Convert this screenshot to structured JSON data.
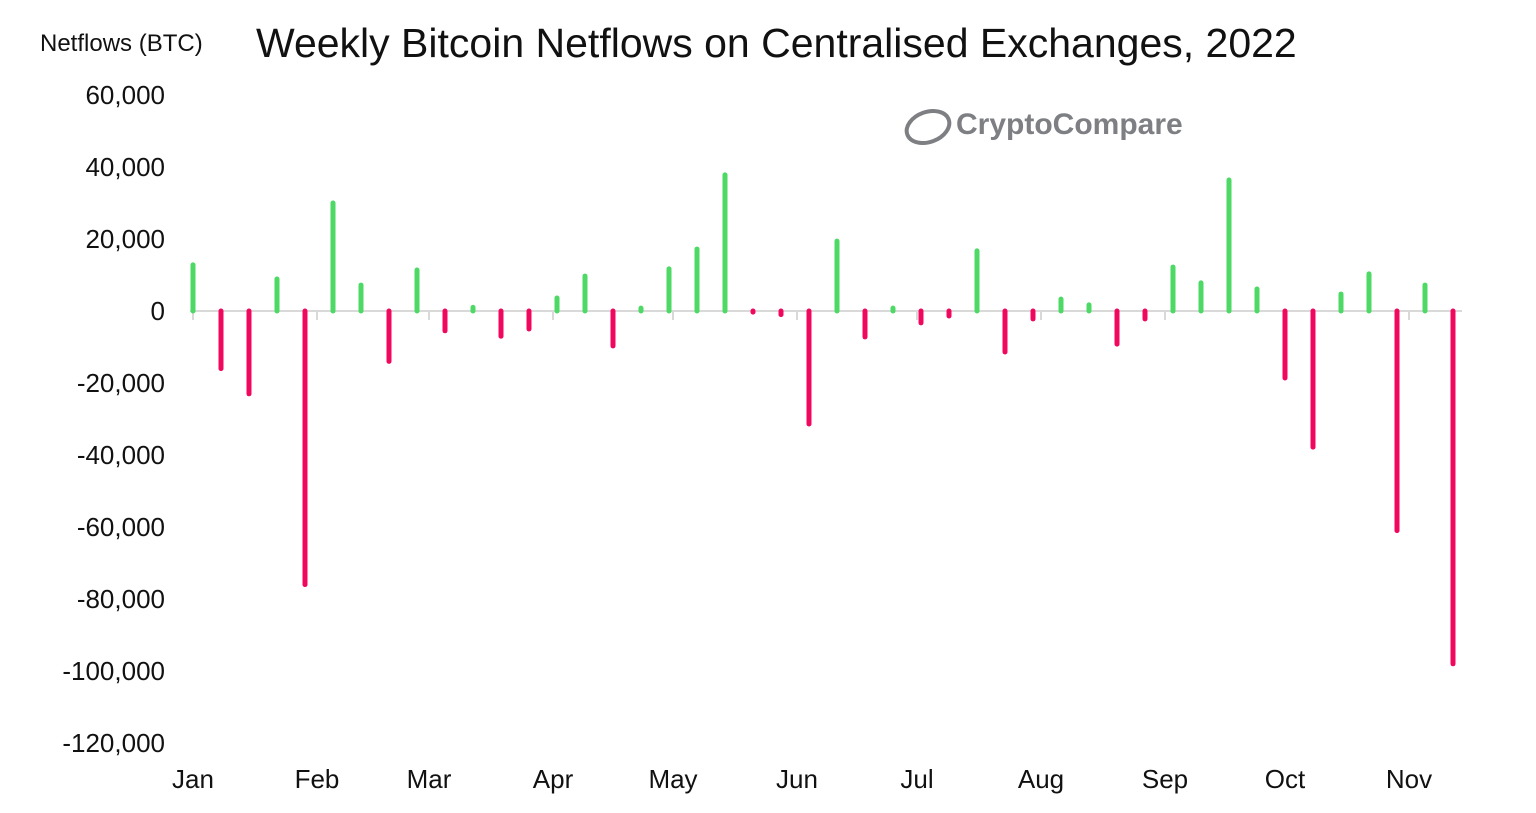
{
  "chart_data": {
    "type": "bar",
    "title": "Weekly Bitcoin Netflows on Centralised Exchanges, 2022",
    "ylabel": "Netflows (BTC)",
    "xlabel": "",
    "watermark": "CryptoCompare",
    "ylim": [
      -120000,
      60000
    ],
    "yticks": [
      60000,
      40000,
      20000,
      0,
      -20000,
      -40000,
      -60000,
      -80000,
      -100000,
      -120000
    ],
    "ytick_labels": [
      "60,000",
      "40,000",
      "20,000",
      "0",
      "-20,000",
      "-40,000",
      "-60,000",
      "-80,000",
      "-100,000",
      "-120,000"
    ],
    "xticks": [
      "2022-01-01",
      "2022-02-01",
      "2022-03-01",
      "2022-04-01",
      "2022-05-01",
      "2022-06-01",
      "2022-07-01",
      "2022-08-01",
      "2022-09-01",
      "2022-10-01",
      "2022-11-01"
    ],
    "xtick_labels": [
      "Jan",
      "Feb",
      "Mar",
      "Apr",
      "May",
      "Jun",
      "Jul",
      "Aug",
      "Sep",
      "Oct",
      "Nov"
    ],
    "grid": false,
    "colors": {
      "positive": "#4cd964",
      "negative": "#f0075e"
    },
    "x": [
      "2022-01-01",
      "2022-01-08",
      "2022-01-15",
      "2022-01-22",
      "2022-01-29",
      "2022-02-05",
      "2022-02-12",
      "2022-02-19",
      "2022-02-26",
      "2022-03-05",
      "2022-03-12",
      "2022-03-19",
      "2022-03-26",
      "2022-04-02",
      "2022-04-09",
      "2022-04-16",
      "2022-04-23",
      "2022-04-30",
      "2022-05-07",
      "2022-05-14",
      "2022-05-21",
      "2022-05-28",
      "2022-06-04",
      "2022-06-11",
      "2022-06-18",
      "2022-06-25",
      "2022-07-02",
      "2022-07-09",
      "2022-07-16",
      "2022-07-23",
      "2022-07-30",
      "2022-08-06",
      "2022-08-13",
      "2022-08-20",
      "2022-08-27",
      "2022-09-03",
      "2022-09-10",
      "2022-09-17",
      "2022-09-24",
      "2022-10-01",
      "2022-10-08",
      "2022-10-15",
      "2022-10-22",
      "2022-10-29",
      "2022-11-05",
      "2022-11-12"
    ],
    "values": [
      12800,
      -16000,
      -23000,
      8900,
      -76000,
      30000,
      7200,
      -14000,
      11400,
      -5500,
      1000,
      -7000,
      -5000,
      3600,
      9700,
      -9700,
      800,
      11700,
      17200,
      37800,
      -300,
      -1000,
      -31400,
      19400,
      -7200,
      800,
      -3300,
      -1400,
      16700,
      -11400,
      -2200,
      3300,
      1700,
      -9200,
      -2200,
      12200,
      7800,
      36400,
      6100,
      -18600,
      -37800,
      4700,
      10300,
      -61000,
      7200,
      -98000
    ]
  }
}
